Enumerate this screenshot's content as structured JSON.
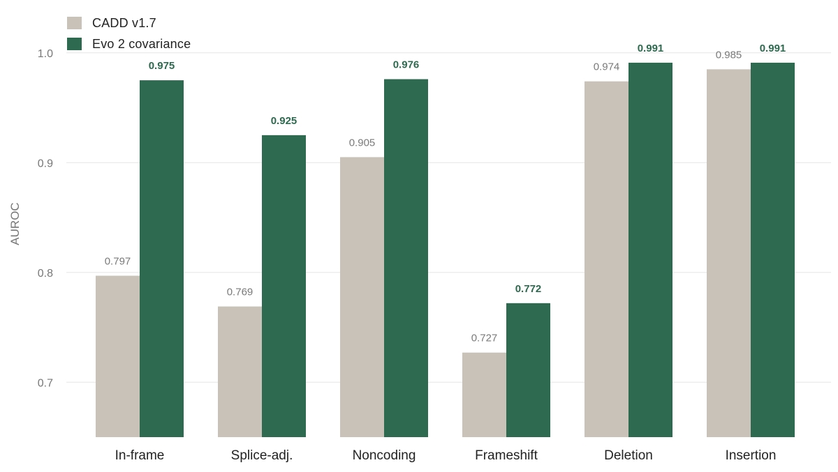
{
  "chart_data": {
    "type": "bar",
    "title": "",
    "xlabel": "",
    "ylabel": "AUROC",
    "ylim": [
      0.65,
      1.0
    ],
    "yticks": [
      "0.7",
      "0.8",
      "0.9",
      "1.0"
    ],
    "yticks_values": [
      0.7,
      0.8,
      0.9,
      1.0
    ],
    "grid": true,
    "legend_position": "top-left",
    "categories": [
      "In-frame",
      "Splice-adj.",
      "Noncoding",
      "Frameshift",
      "Deletion",
      "Insertion"
    ],
    "series": [
      {
        "name": "CADD v1.7",
        "color": "#c9c2b8",
        "label_color": "#7a7a7a",
        "values": [
          0.797,
          0.769,
          0.905,
          0.727,
          0.974,
          0.985
        ],
        "labels": [
          "0.797",
          "0.769",
          "0.905",
          "0.727",
          "0.974",
          "0.985"
        ]
      },
      {
        "name": "Evo 2 covariance",
        "color": "#2e6a50",
        "label_color": "#2e6a50",
        "values": [
          0.975,
          0.925,
          0.976,
          0.772,
          0.991,
          0.991
        ],
        "labels": [
          "0.975",
          "0.925",
          "0.976",
          "0.772",
          "0.991",
          "0.991"
        ]
      }
    ]
  }
}
